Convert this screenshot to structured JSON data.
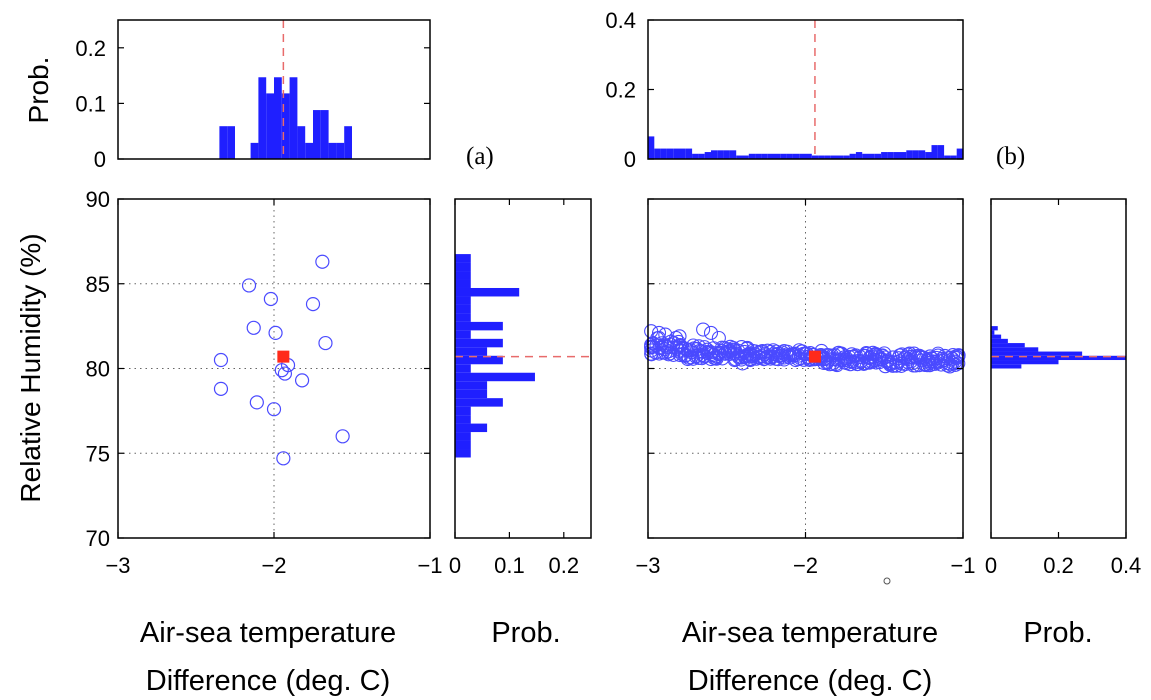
{
  "colors": {
    "bar": "#1f1fff",
    "marker": "#4a4aff",
    "mean": "#ff2a1a",
    "ref_line": "#e86b6b",
    "grid": "#666666"
  },
  "chart_data": [
    {
      "id": "a",
      "type": "scatter_with_marginals",
      "panel_label": "(a)",
      "xlabel_line1": "Air-sea temperature",
      "xlabel_line2": "Difference (deg. C)",
      "ylabel": "Relative Humidity (%)",
      "xlim": [
        -3,
        -1
      ],
      "ylim": [
        70,
        90
      ],
      "xticks": [
        -3,
        -2,
        -1
      ],
      "xtick_labels": [
        "−3",
        "−2",
        "−1"
      ],
      "yticks": [
        70,
        75,
        80,
        85,
        90
      ],
      "ytick_labels": [
        "70",
        "75",
        "80",
        "85",
        "90"
      ],
      "grid": true,
      "points": [
        [
          -1.69,
          86.3
        ],
        [
          -2.16,
          84.9
        ],
        [
          -2.02,
          84.1
        ],
        [
          -1.75,
          83.8
        ],
        [
          -2.13,
          82.4
        ],
        [
          -1.99,
          82.1
        ],
        [
          -1.67,
          81.5
        ],
        [
          -2.34,
          80.5
        ],
        [
          -1.91,
          80.2
        ],
        [
          -1.95,
          79.9
        ],
        [
          -1.93,
          79.7
        ],
        [
          -1.82,
          79.3
        ],
        [
          -2.34,
          78.8
        ],
        [
          -2.11,
          78.0
        ],
        [
          -2.0,
          77.6
        ],
        [
          -1.56,
          76.0
        ],
        [
          -1.94,
          74.7
        ]
      ],
      "mean_point": [
        -1.94,
        80.7
      ],
      "top_hist": {
        "ylabel": "Prob.",
        "ylim": [
          0,
          0.25
        ],
        "yticks": [
          0,
          0.1,
          0.2
        ],
        "ytick_labels": [
          "0",
          "0.1",
          "0.2"
        ],
        "bin_width": 0.05,
        "bins": [
          [
            -2.35,
            0.059
          ],
          [
            -2.3,
            0.059
          ],
          [
            -2.15,
            0.029
          ],
          [
            -2.1,
            0.147
          ],
          [
            -2.05,
            0.118
          ],
          [
            -2.0,
            0.147
          ],
          [
            -1.95,
            0.118
          ],
          [
            -1.9,
            0.147
          ],
          [
            -1.85,
            0.059
          ],
          [
            -1.8,
            0.029
          ],
          [
            -1.75,
            0.088
          ],
          [
            -1.7,
            0.088
          ],
          [
            -1.65,
            0.029
          ],
          [
            -1.6,
            0.029
          ],
          [
            -1.55,
            0.059
          ]
        ],
        "ref_x": -1.94
      },
      "right_hist": {
        "xlabel": "Prob.",
        "xlim": [
          0,
          0.25
        ],
        "xticks": [
          0,
          0.1,
          0.2
        ],
        "xtick_labels": [
          "0",
          "0.1",
          "0.2"
        ],
        "bin_width": 0.5,
        "bins": [
          [
            86.25,
            0.029
          ],
          [
            85.75,
            0.029
          ],
          [
            85.25,
            0.029
          ],
          [
            84.75,
            0.029
          ],
          [
            84.25,
            0.118
          ],
          [
            83.75,
            0.029
          ],
          [
            83.25,
            0.029
          ],
          [
            82.75,
            0.029
          ],
          [
            82.25,
            0.088
          ],
          [
            81.75,
            0.029
          ],
          [
            81.25,
            0.088
          ],
          [
            80.75,
            0.059
          ],
          [
            80.25,
            0.088
          ],
          [
            79.75,
            0.029
          ],
          [
            79.25,
            0.147
          ],
          [
            78.75,
            0.059
          ],
          [
            78.25,
            0.059
          ],
          [
            77.75,
            0.088
          ],
          [
            77.25,
            0.029
          ],
          [
            76.75,
            0.029
          ],
          [
            76.25,
            0.059
          ],
          [
            75.75,
            0.029
          ],
          [
            75.25,
            0.029
          ],
          [
            74.75,
            0.029
          ]
        ],
        "ref_y": 80.7
      }
    },
    {
      "id": "b",
      "type": "scatter_with_marginals",
      "panel_label": "(b)",
      "xlabel_line1": "Air-sea temperature",
      "xlabel_line2": "Difference (deg. C)",
      "ylabel": "",
      "xlim": [
        -3,
        -1
      ],
      "ylim": [
        70,
        90
      ],
      "xticks": [
        -3,
        -2,
        -1
      ],
      "xtick_labels": [
        "−3",
        "−2",
        "−1"
      ],
      "yticks": [
        70,
        75,
        80,
        85,
        90
      ],
      "ytick_labels": [],
      "grid": true,
      "point_band": {
        "x_min": -2.98,
        "x_max": -1.02,
        "segments": [
          [
            -3.0,
            -2.8,
            81.3,
            0.55
          ],
          [
            -2.8,
            -2.55,
            81.0,
            0.45
          ],
          [
            -2.55,
            -2.35,
            80.9,
            0.4
          ],
          [
            -2.35,
            -1.9,
            80.8,
            0.3
          ],
          [
            -1.9,
            -1.55,
            80.6,
            0.35
          ],
          [
            -1.55,
            -1.02,
            80.5,
            0.4
          ]
        ],
        "extra_points": [
          [
            -2.98,
            82.2
          ],
          [
            -2.93,
            82.1
          ],
          [
            -2.89,
            82.0
          ],
          [
            -2.8,
            81.9
          ],
          [
            -2.65,
            82.3
          ],
          [
            -2.6,
            82.1
          ],
          [
            -2.55,
            81.8
          ],
          [
            -2.45,
            80.5
          ],
          [
            -2.4,
            80.3
          ],
          [
            -2.35,
            80.5
          ],
          [
            -1.8,
            80.2
          ],
          [
            -1.6,
            80.4
          ],
          [
            -1.3,
            80.7
          ],
          [
            -1.2,
            80.6
          ],
          [
            -1.05,
            80.4
          ],
          [
            -1.03,
            80.3
          ]
        ]
      },
      "mean_point": [
        -1.94,
        80.7
      ],
      "top_hist": {
        "ylabel": "",
        "ylim": [
          0,
          0.4
        ],
        "yticks": [
          0,
          0.2,
          0.4
        ],
        "ytick_labels": [
          "0",
          "0.2",
          "0.4"
        ],
        "bin_width": 0.04,
        "bins": [
          [
            -3.0,
            0.065
          ],
          [
            -2.96,
            0.03
          ],
          [
            -2.92,
            0.03
          ],
          [
            -2.88,
            0.03
          ],
          [
            -2.84,
            0.03
          ],
          [
            -2.8,
            0.03
          ],
          [
            -2.76,
            0.03
          ],
          [
            -2.72,
            0.015
          ],
          [
            -2.68,
            0.015
          ],
          [
            -2.64,
            0.02
          ],
          [
            -2.6,
            0.025
          ],
          [
            -2.56,
            0.025
          ],
          [
            -2.52,
            0.025
          ],
          [
            -2.48,
            0.025
          ],
          [
            -2.44,
            0.01
          ],
          [
            -2.4,
            0.01
          ],
          [
            -2.36,
            0.015
          ],
          [
            -2.32,
            0.015
          ],
          [
            -2.28,
            0.015
          ],
          [
            -2.24,
            0.015
          ],
          [
            -2.2,
            0.015
          ],
          [
            -2.16,
            0.015
          ],
          [
            -2.12,
            0.015
          ],
          [
            -2.08,
            0.015
          ],
          [
            -2.04,
            0.015
          ],
          [
            -2.0,
            0.015
          ],
          [
            -1.96,
            0.01
          ],
          [
            -1.92,
            0.01
          ],
          [
            -1.88,
            0.01
          ],
          [
            -1.84,
            0.01
          ],
          [
            -1.8,
            0.01
          ],
          [
            -1.76,
            0.01
          ],
          [
            -1.72,
            0.015
          ],
          [
            -1.68,
            0.02
          ],
          [
            -1.64,
            0.015
          ],
          [
            -1.6,
            0.015
          ],
          [
            -1.56,
            0.015
          ],
          [
            -1.52,
            0.02
          ],
          [
            -1.48,
            0.02
          ],
          [
            -1.44,
            0.02
          ],
          [
            -1.4,
            0.02
          ],
          [
            -1.36,
            0.025
          ],
          [
            -1.32,
            0.025
          ],
          [
            -1.28,
            0.025
          ],
          [
            -1.24,
            0.02
          ],
          [
            -1.2,
            0.04
          ],
          [
            -1.16,
            0.04
          ],
          [
            -1.12,
            0.01
          ],
          [
            -1.08,
            0.01
          ],
          [
            -1.04,
            0.03
          ]
        ],
        "ref_x": -1.94
      },
      "right_hist": {
        "xlabel": "Prob.",
        "xlim": [
          0,
          0.4
        ],
        "xticks": [
          0,
          0.2,
          0.4
        ],
        "xtick_labels": [
          "0",
          "0.2",
          "0.4"
        ],
        "bin_width": 0.25,
        "bins": [
          [
            82.25,
            0.02
          ],
          [
            82.0,
            0.01
          ],
          [
            81.75,
            0.03
          ],
          [
            81.5,
            0.05
          ],
          [
            81.25,
            0.1
          ],
          [
            81.0,
            0.14
          ],
          [
            80.75,
            0.27
          ],
          [
            80.5,
            0.4
          ],
          [
            80.25,
            0.2
          ],
          [
            80.0,
            0.09
          ]
        ],
        "ref_y": 80.7
      }
    }
  ]
}
